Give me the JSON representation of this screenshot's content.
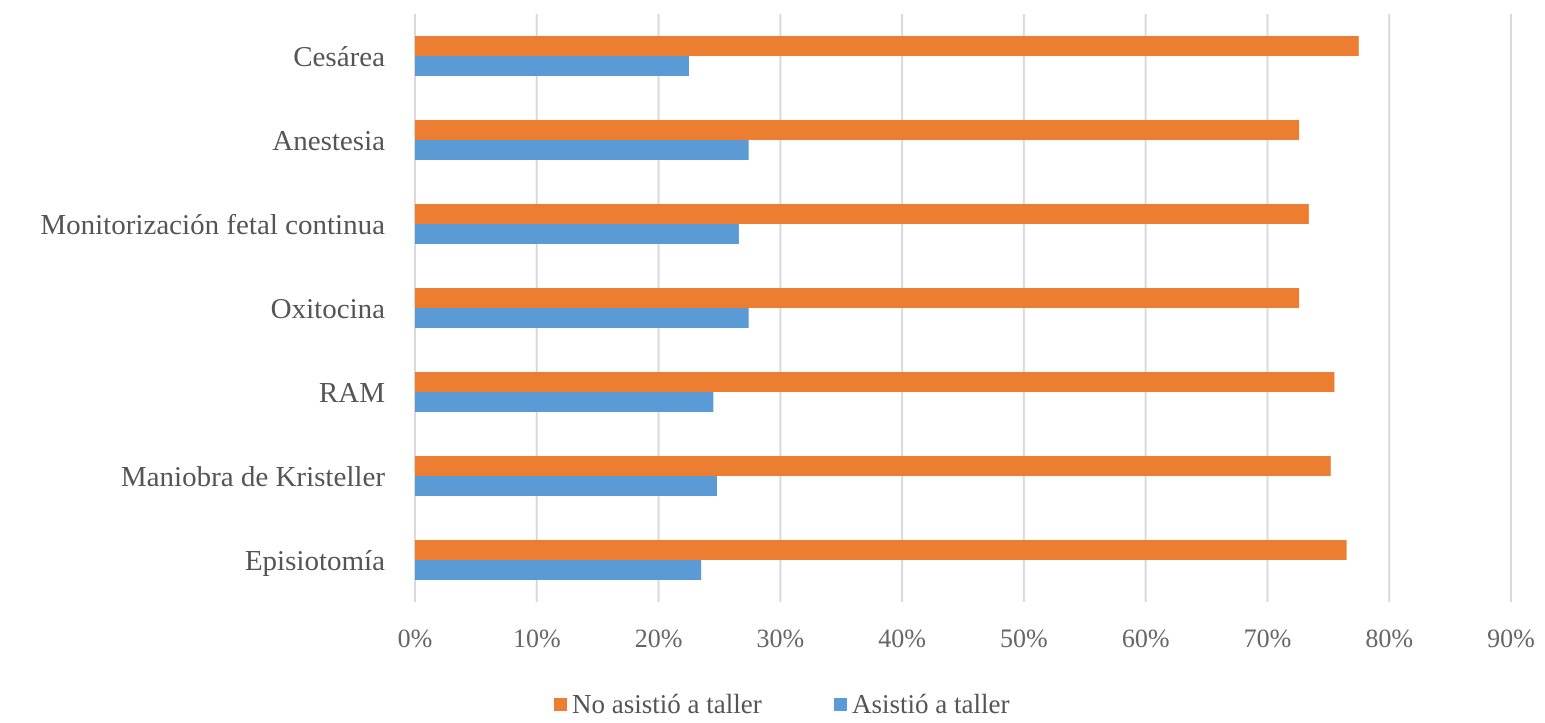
{
  "chart_data": {
    "type": "bar",
    "orientation": "horizontal",
    "categories": [
      "Cesárea",
      "Anestesia",
      "Monitorización fetal continua",
      "Oxitocina",
      "RAM",
      "Maniobra de Kristeller",
      "Episiotomía"
    ],
    "series": [
      {
        "name": "No asistió a taller",
        "color": "#ED7D31",
        "values": [
          77.5,
          72.6,
          73.4,
          72.6,
          75.5,
          75.2,
          76.5
        ]
      },
      {
        "name": "Asistió a taller",
        "color": "#5B9BD5",
        "values": [
          22.5,
          27.4,
          26.6,
          27.4,
          24.5,
          24.8,
          23.5
        ]
      }
    ],
    "xticks": [
      "0%",
      "10%",
      "20%",
      "30%",
      "40%",
      "50%",
      "60%",
      "70%",
      "80%",
      "90%"
    ],
    "xlim": [
      0,
      90
    ],
    "grid": true,
    "legend_position": "bottom",
    "title": "",
    "xlabel": "",
    "ylabel": ""
  }
}
